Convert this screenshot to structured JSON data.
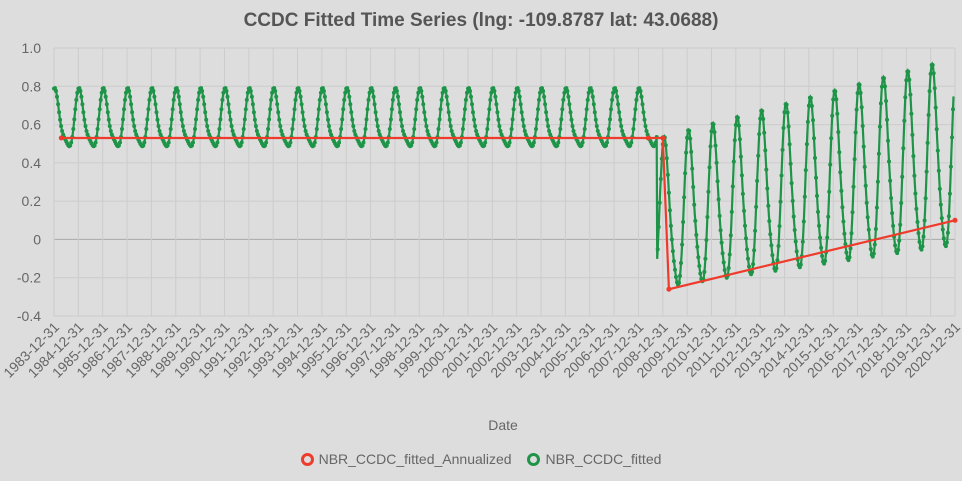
{
  "chart_data": {
    "type": "line",
    "title": "CCDC Fitted Time Series (lng: -109.8787 lat: 43.0688)",
    "xlabel": "Date",
    "ylabel": "",
    "ylim": [
      -0.4,
      1.0
    ],
    "yticks": [
      "1.0",
      "0.8",
      "0.6",
      "0.4",
      "0.2",
      "0",
      "-0.2",
      "-0.4"
    ],
    "xticks": [
      "1983-12-31",
      "1984-12-31",
      "1985-12-31",
      "1986-12-31",
      "1987-12-31",
      "1988-12-31",
      "1989-12-31",
      "1990-12-31",
      "1991-12-31",
      "1992-12-31",
      "1993-12-31",
      "1994-12-31",
      "1995-12-31",
      "1996-12-31",
      "1997-12-31",
      "1998-12-31",
      "1999-12-31",
      "2000-12-31",
      "2001-12-31",
      "2002-12-31",
      "2003-12-31",
      "2004-12-31",
      "2005-12-31",
      "2006-12-31",
      "2007-12-31",
      "2008-12-31",
      "2009-12-31",
      "2010-12-31",
      "2011-12-31",
      "2012-12-31",
      "2013-12-31",
      "2014-12-31",
      "2015-12-31",
      "2016-12-31",
      "2017-12-31",
      "2018-12-31",
      "2019-12-31",
      "2020-12-31"
    ],
    "series": [
      {
        "name": "NBR_CCDC_fitted_Annualized",
        "color": "#ee3b2b",
        "x": [
          1984.3,
          2008.4,
          2009.0,
          2009.25,
          2021.0
        ],
        "y": [
          0.53,
          0.53,
          0.53,
          -0.26,
          0.1
        ]
      },
      {
        "name": "NBR_CCDC_fitted",
        "color": "#1e9448",
        "segments": [
          {
            "start": 1984.0,
            "end": 2008.75,
            "mean": 0.615,
            "amplitude": 0.145,
            "trend": 0.0
          },
          {
            "start": 2008.75,
            "end": 2020.95,
            "mean_start": 0.1,
            "mean_end": 0.42,
            "amp_start": 0.38,
            "amp_end": 0.48
          }
        ]
      }
    ],
    "legend": [
      "NBR_CCDC_fitted_Annualized",
      "NBR_CCDC_fitted"
    ],
    "legend_position": "bottom"
  }
}
